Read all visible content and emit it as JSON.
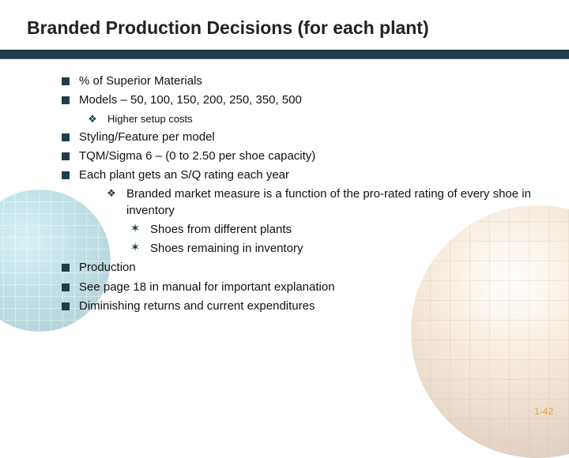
{
  "title": "Branded Production Decisions (for each plant)",
  "bullets": {
    "b1": "% of Superior Materials",
    "b2": "Models – 50, 100, 150, 200, 250, 350, 500",
    "b2a": "Higher setup costs",
    "b3": "Styling/Feature per model",
    "b4": "TQM/Sigma 6 – (0 to 2.50 per shoe capacity)",
    "b5": "Each plant gets an S/Q rating each year",
    "b5a": "Branded market measure is a function of the pro-rated rating of every shoe in inventory",
    "b5a1": "Shoes from different plants",
    "b5a2": "Shoes remaining in inventory",
    "b6": "Production",
    "b7": "See page 18 in manual for important explanation",
    "b8": "Diminishing returns and current expenditures"
  },
  "pageNumber": "1-42",
  "colors": {
    "ruleBg": "#1f3d4a",
    "bulletColor": "#1f3d4a",
    "pageNumColor": "#d9a44a"
  }
}
